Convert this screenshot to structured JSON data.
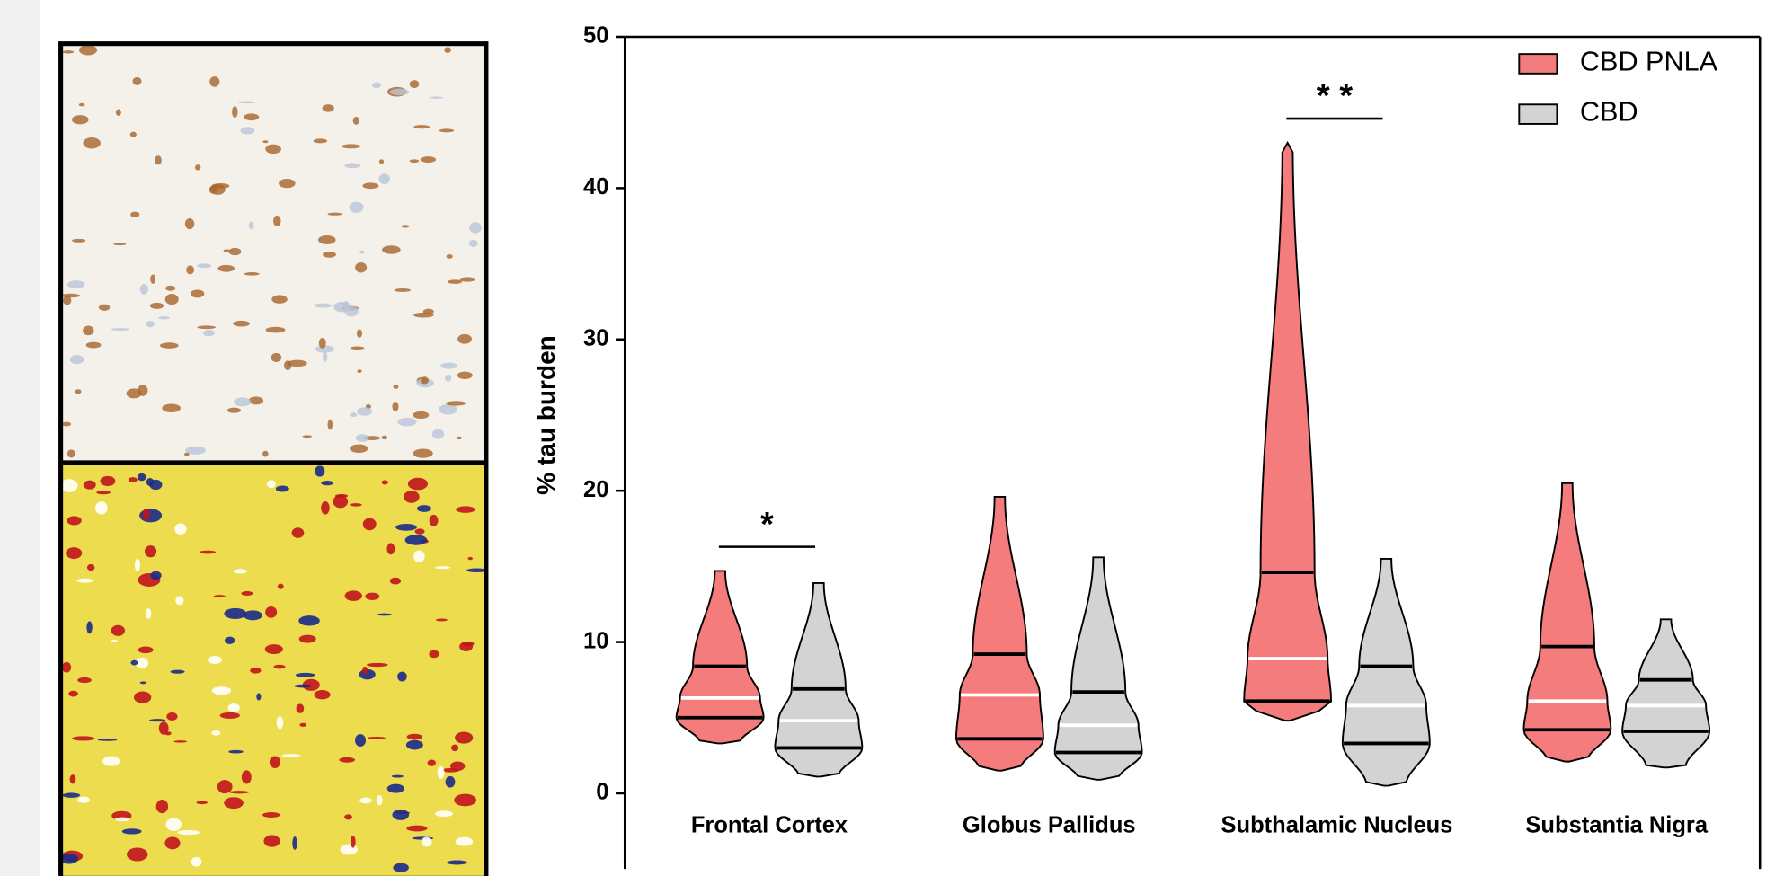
{
  "chart_data": {
    "type": "violin",
    "y_label": "% tau burden",
    "categories": [
      "Frontal Cortex",
      "Globus Pallidus",
      "Subthalamic Nucleus",
      "Substantia Nigra"
    ],
    "series": [
      {
        "name": "CBD PNLA",
        "color": "#f47c7c",
        "min": [
          3.3,
          1.5,
          4.8,
          2.1
        ],
        "q1": [
          5.0,
          3.6,
          6.1,
          4.2
        ],
        "median": [
          6.3,
          6.5,
          8.9,
          6.1
        ],
        "q3": [
          8.4,
          9.2,
          14.6,
          9.7
        ],
        "max": [
          14.7,
          19.6,
          43,
          20.5
        ]
      },
      {
        "name": "CBD",
        "color": "#d3d3d3",
        "min": [
          1.1,
          0.9,
          0.5,
          1.7
        ],
        "q1": [
          3.0,
          2.7,
          3.3,
          4.1
        ],
        "median": [
          4.8,
          4.5,
          5.8,
          5.8
        ],
        "q3": [
          6.9,
          6.7,
          8.4,
          7.5
        ],
        "max": [
          13.9,
          15.6,
          15.5,
          11.5
        ]
      }
    ],
    "annotations": [
      "*",
      "* *"
    ],
    "ylim": [
      -5,
      50
    ],
    "yticks": [
      0,
      10,
      20,
      30,
      40,
      50
    ]
  }
}
